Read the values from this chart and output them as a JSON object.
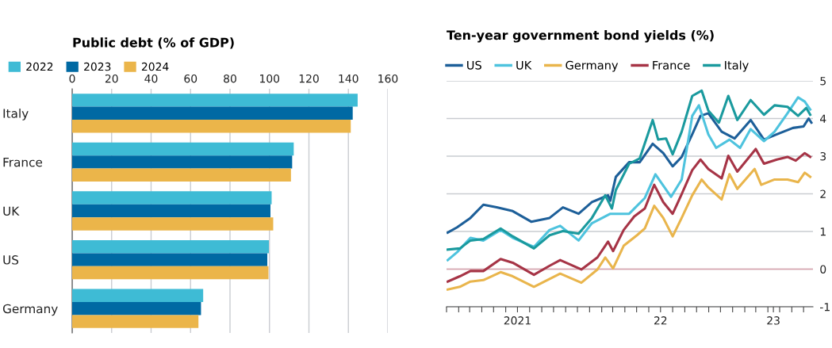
{
  "chart_data": [
    {
      "type": "bar",
      "orientation": "horizontal",
      "title": "Public debt (% of GDP)",
      "categories": [
        "Italy",
        "France",
        "UK",
        "US",
        "Germany"
      ],
      "series": [
        {
          "name": "2022",
          "color": "#3ebbd5",
          "values": [
            144.7,
            112.3,
            101.1,
            99.7,
            66.4
          ]
        },
        {
          "name": "2023",
          "color": "#0069a3",
          "values": [
            142.2,
            111.5,
            100.5,
            98.9,
            65.3
          ]
        },
        {
          "name": "2024",
          "color": "#ebb54a",
          "values": [
            141.2,
            110.9,
            101.9,
            99.5,
            64.0
          ]
        }
      ],
      "xlim": [
        0,
        160
      ],
      "xticks": [
        0,
        20,
        40,
        60,
        80,
        100,
        120,
        140,
        160
      ],
      "grid": "x",
      "legend": "top left"
    },
    {
      "type": "line",
      "title": "Ten-year government bond yields (%)",
      "series": [
        {
          "name": "US",
          "color": "#1d5f99",
          "x": [
            "2021-01-04",
            "2021-01-28",
            "2021-03-03",
            "2021-04-05",
            "2021-05-09",
            "2021-06-19",
            "2021-08-05",
            "2021-09-21",
            "2021-10-25",
            "2021-12-04",
            "2022-01-07",
            "2022-02-17",
            "2022-02-23",
            "2022-03-09",
            "2022-04-12",
            "2022-05-09",
            "2022-06-11",
            "2022-07-08",
            "2022-08-01",
            "2022-08-24",
            "2022-09-20",
            "2022-10-11",
            "2022-10-31",
            "2022-12-04",
            "2023-01-06",
            "2023-02-16",
            "2023-03-22",
            "2023-04-24",
            "2023-06-04",
            "2023-07-01",
            "2023-07-14",
            "2023-07-21"
          ],
          "values": [
            0.97,
            1.11,
            1.36,
            1.71,
            1.64,
            1.54,
            1.26,
            1.36,
            1.64,
            1.47,
            1.78,
            1.96,
            1.82,
            2.45,
            2.84,
            2.84,
            3.33,
            3.08,
            2.73,
            2.98,
            3.58,
            4.07,
            4.14,
            3.65,
            3.47,
            3.96,
            3.44,
            3.58,
            3.75,
            3.79,
            4.0,
            3.89
          ]
        },
        {
          "name": "UK",
          "color": "#4ec3de",
          "x": [
            "2021-01-04",
            "2021-01-28",
            "2021-03-03",
            "2021-04-05",
            "2021-05-19",
            "2021-06-19",
            "2021-08-12",
            "2021-09-21",
            "2021-10-18",
            "2021-12-04",
            "2022-01-07",
            "2022-02-23",
            "2022-04-12",
            "2022-05-22",
            "2022-06-18",
            "2022-07-28",
            "2022-08-24",
            "2022-09-20",
            "2022-10-07",
            "2022-10-31",
            "2022-11-20",
            "2022-12-24",
            "2023-01-20",
            "2023-02-16",
            "2023-03-22",
            "2023-04-18",
            "2023-05-21",
            "2023-06-17",
            "2023-07-04",
            "2023-07-18"
          ],
          "values": [
            0.24,
            0.45,
            0.83,
            0.76,
            1.04,
            0.83,
            0.59,
            1.04,
            1.15,
            0.76,
            1.22,
            1.47,
            1.47,
            1.89,
            2.52,
            1.92,
            2.38,
            4.07,
            4.35,
            3.58,
            3.22,
            3.44,
            3.22,
            3.72,
            3.4,
            3.65,
            4.14,
            4.56,
            4.45,
            4.24
          ]
        },
        {
          "name": "Germany",
          "color": "#e9b54c",
          "x": [
            "2021-01-04",
            "2021-02-04",
            "2021-03-03",
            "2021-04-05",
            "2021-05-19",
            "2021-06-19",
            "2021-08-12",
            "2021-09-21",
            "2021-10-18",
            "2021-12-11",
            "2022-01-21",
            "2022-02-10",
            "2022-03-02",
            "2022-03-29",
            "2022-05-02",
            "2022-05-22",
            "2022-06-15",
            "2022-07-08",
            "2022-08-01",
            "2022-08-24",
            "2022-09-20",
            "2022-10-14",
            "2022-10-31",
            "2022-12-04",
            "2022-12-24",
            "2023-01-13",
            "2023-02-26",
            "2023-03-15",
            "2023-04-18",
            "2023-05-21",
            "2023-06-17",
            "2023-07-04",
            "2023-07-18"
          ],
          "values": [
            -0.54,
            -0.47,
            -0.33,
            -0.29,
            -0.08,
            -0.19,
            -0.47,
            -0.26,
            -0.12,
            -0.36,
            -0.01,
            0.31,
            0.02,
            0.62,
            0.9,
            1.08,
            1.68,
            1.36,
            0.87,
            1.36,
            1.96,
            2.38,
            2.17,
            1.85,
            2.52,
            2.13,
            2.66,
            2.24,
            2.38,
            2.38,
            2.31,
            2.56,
            2.45
          ]
        },
        {
          "name": "France",
          "color": "#a63446",
          "x": [
            "2021-01-04",
            "2021-02-04",
            "2021-03-03",
            "2021-04-05",
            "2021-05-19",
            "2021-06-19",
            "2021-08-12",
            "2021-09-21",
            "2021-10-18",
            "2021-12-11",
            "2022-01-21",
            "2022-02-17",
            "2022-03-02",
            "2022-03-29",
            "2022-04-25",
            "2022-05-22",
            "2022-06-15",
            "2022-07-08",
            "2022-08-01",
            "2022-08-24",
            "2022-09-20",
            "2022-10-11",
            "2022-10-31",
            "2022-12-04",
            "2022-12-21",
            "2023-01-13",
            "2023-03-01",
            "2023-03-22",
            "2023-04-24",
            "2023-05-21",
            "2023-06-11",
            "2023-07-04",
            "2023-07-18"
          ],
          "values": [
            -0.33,
            -0.19,
            -0.05,
            -0.05,
            0.27,
            0.17,
            -0.15,
            0.09,
            0.24,
            -0.01,
            0.31,
            0.73,
            0.48,
            1.04,
            1.4,
            1.61,
            2.24,
            1.78,
            1.47,
            1.99,
            2.63,
            2.91,
            2.66,
            2.41,
            3.01,
            2.59,
            3.19,
            2.8,
            2.91,
            2.98,
            2.88,
            3.08,
            2.98
          ]
        },
        {
          "name": "Italy",
          "color": "#1a9a9e",
          "x": [
            "2021-01-04",
            "2021-02-04",
            "2021-03-03",
            "2021-04-05",
            "2021-05-19",
            "2021-06-19",
            "2021-08-12",
            "2021-09-21",
            "2021-10-25",
            "2021-12-04",
            "2022-01-07",
            "2022-02-10",
            "2022-02-27",
            "2022-03-09",
            "2022-04-12",
            "2022-05-09",
            "2022-06-11",
            "2022-06-25",
            "2022-07-15",
            "2022-08-01",
            "2022-08-24",
            "2022-09-20",
            "2022-10-14",
            "2022-10-31",
            "2022-11-27",
            "2022-12-21",
            "2023-01-13",
            "2023-02-16",
            "2023-03-22",
            "2023-04-18",
            "2023-05-21",
            "2023-06-17",
            "2023-07-08",
            "2023-07-18"
          ],
          "values": [
            0.52,
            0.55,
            0.76,
            0.8,
            1.08,
            0.87,
            0.55,
            0.9,
            1.01,
            0.94,
            1.36,
            1.96,
            1.61,
            2.1,
            2.8,
            2.94,
            3.96,
            3.44,
            3.47,
            3.05,
            3.65,
            4.6,
            4.74,
            4.21,
            3.89,
            4.6,
            3.96,
            4.49,
            4.1,
            4.35,
            4.31,
            4.07,
            4.28,
            4.1
          ]
        }
      ],
      "xlim": [
        "2021-01-01",
        "2023-07-25"
      ],
      "xticks": [
        {
          "value": "2021-01-01",
          "label": null
        },
        {
          "value": "2021-02-01",
          "label": null
        },
        {
          "value": "2021-03-01",
          "label": null
        },
        {
          "value": "2021-04-01",
          "label": null
        },
        {
          "value": "2021-05-01",
          "label": null
        },
        {
          "value": "2021-06-01",
          "label": null
        },
        {
          "value": "2021-07-01",
          "label": "2021"
        },
        {
          "value": "2021-08-01",
          "label": null
        },
        {
          "value": "2021-09-01",
          "label": null
        },
        {
          "value": "2021-10-01",
          "label": null
        },
        {
          "value": "2021-11-01",
          "label": null
        },
        {
          "value": "2021-12-01",
          "label": null
        },
        {
          "value": "2022-01-01",
          "label": null
        },
        {
          "value": "2022-02-01",
          "label": null
        },
        {
          "value": "2022-03-01",
          "label": null
        },
        {
          "value": "2022-04-01",
          "label": null
        },
        {
          "value": "2022-05-01",
          "label": null
        },
        {
          "value": "2022-06-01",
          "label": null
        },
        {
          "value": "2022-07-01",
          "label": "22"
        },
        {
          "value": "2022-08-01",
          "label": null
        },
        {
          "value": "2022-09-01",
          "label": null
        },
        {
          "value": "2022-10-01",
          "label": null
        },
        {
          "value": "2022-11-01",
          "label": null
        },
        {
          "value": "2022-12-01",
          "label": null
        },
        {
          "value": "2023-01-01",
          "label": null
        },
        {
          "value": "2023-02-01",
          "label": null
        },
        {
          "value": "2023-03-01",
          "label": null
        },
        {
          "value": "2023-04-01",
          "label": null
        },
        {
          "value": "2023-04-15",
          "label": "23"
        },
        {
          "value": "2023-05-01",
          "label": null
        },
        {
          "value": "2023-06-01",
          "label": null
        },
        {
          "value": "2023-07-01",
          "label": null
        }
      ],
      "ylim": [
        -1,
        5
      ],
      "yticks": [
        -1,
        0,
        1,
        2,
        3,
        4,
        5
      ],
      "ref_lines": [
        {
          "axis": "y",
          "value": 0,
          "color": "#d9a3ac"
        }
      ],
      "grid": "y",
      "legend": "top left",
      "line_style": "solid",
      "marker": "none"
    }
  ]
}
